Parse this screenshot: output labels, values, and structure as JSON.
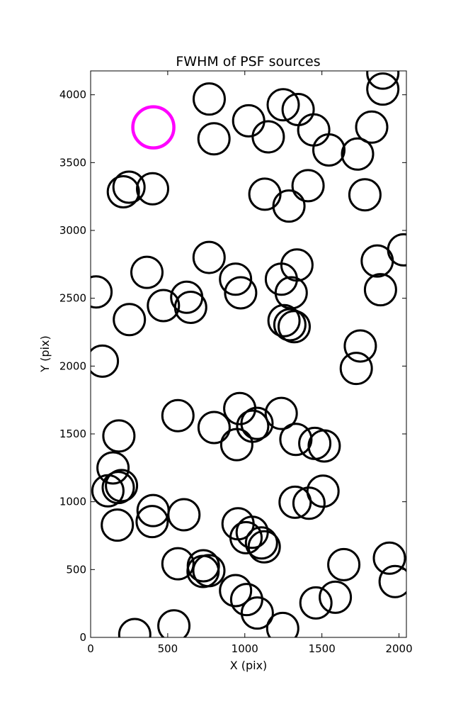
{
  "chart_data": {
    "type": "scatter",
    "title": "FWHM of PSF sources",
    "xlabel": "X (pix)",
    "ylabel": "Y (pix)",
    "xlim": [
      0,
      2048
    ],
    "ylim": [
      0,
      4176
    ],
    "xticks": [
      "0",
      "500",
      "1000",
      "1500",
      "2000"
    ],
    "yticks": [
      "0",
      "500",
      "1000",
      "1500",
      "2000",
      "2500",
      "3000",
      "3500",
      "4000"
    ],
    "grid": false,
    "marker": "open-circle",
    "marker_color": "#000000",
    "series": [
      {
        "color": "#000000",
        "points": [
          {
            "x": 769,
            "y": 3969
          },
          {
            "x": 1249,
            "y": 3926
          },
          {
            "x": 1346,
            "y": 3891
          },
          {
            "x": 1025,
            "y": 3808
          },
          {
            "x": 1447,
            "y": 3741
          },
          {
            "x": 1152,
            "y": 3690
          },
          {
            "x": 800,
            "y": 3676
          },
          {
            "x": 1823,
            "y": 3762
          },
          {
            "x": 1545,
            "y": 3593
          },
          {
            "x": 1731,
            "y": 3563
          },
          {
            "x": 1895,
            "y": 4042
          },
          {
            "x": 1895,
            "y": 4160
          },
          {
            "x": 249,
            "y": 3319
          },
          {
            "x": 212,
            "y": 3285
          },
          {
            "x": 402,
            "y": 3307
          },
          {
            "x": 1130,
            "y": 3267
          },
          {
            "x": 1410,
            "y": 3330
          },
          {
            "x": 1286,
            "y": 3180
          },
          {
            "x": 1779,
            "y": 3263
          },
          {
            "x": 768,
            "y": 2801
          },
          {
            "x": 2030,
            "y": 2857
          },
          {
            "x": 365,
            "y": 2691
          },
          {
            "x": 1338,
            "y": 2745
          },
          {
            "x": 940,
            "y": 2641
          },
          {
            "x": 1237,
            "y": 2641
          },
          {
            "x": 1859,
            "y": 2775
          },
          {
            "x": 35,
            "y": 2547
          },
          {
            "x": 623,
            "y": 2507
          },
          {
            "x": 973,
            "y": 2540
          },
          {
            "x": 1301,
            "y": 2540
          },
          {
            "x": 1880,
            "y": 2563
          },
          {
            "x": 472,
            "y": 2446
          },
          {
            "x": 649,
            "y": 2433
          },
          {
            "x": 251,
            "y": 2343
          },
          {
            "x": 1254,
            "y": 2335
          },
          {
            "x": 1292,
            "y": 2305
          },
          {
            "x": 1320,
            "y": 2291
          },
          {
            "x": 1749,
            "y": 2148
          },
          {
            "x": 1723,
            "y": 1983
          },
          {
            "x": 76,
            "y": 2036
          },
          {
            "x": 566,
            "y": 1635
          },
          {
            "x": 967,
            "y": 1687
          },
          {
            "x": 1236,
            "y": 1651
          },
          {
            "x": 801,
            "y": 1547
          },
          {
            "x": 1079,
            "y": 1578
          },
          {
            "x": 1051,
            "y": 1557
          },
          {
            "x": 183,
            "y": 1485
          },
          {
            "x": 1331,
            "y": 1460
          },
          {
            "x": 1454,
            "y": 1430
          },
          {
            "x": 1515,
            "y": 1411
          },
          {
            "x": 948,
            "y": 1421
          },
          {
            "x": 145,
            "y": 1249
          },
          {
            "x": 200,
            "y": 1119
          },
          {
            "x": 179,
            "y": 1105
          },
          {
            "x": 112,
            "y": 1081
          },
          {
            "x": 1507,
            "y": 1078
          },
          {
            "x": 1326,
            "y": 996
          },
          {
            "x": 1416,
            "y": 989
          },
          {
            "x": 405,
            "y": 935
          },
          {
            "x": 605,
            "y": 904
          },
          {
            "x": 399,
            "y": 854
          },
          {
            "x": 173,
            "y": 828
          },
          {
            "x": 956,
            "y": 838
          },
          {
            "x": 1048,
            "y": 775
          },
          {
            "x": 1008,
            "y": 735
          },
          {
            "x": 1108,
            "y": 696
          },
          {
            "x": 1126,
            "y": 668
          },
          {
            "x": 1975,
            "y": 412
          },
          {
            "x": 1938,
            "y": 584
          },
          {
            "x": 1642,
            "y": 536
          },
          {
            "x": 566,
            "y": 543
          },
          {
            "x": 731,
            "y": 528
          },
          {
            "x": 729,
            "y": 486
          },
          {
            "x": 767,
            "y": 492
          },
          {
            "x": 940,
            "y": 345
          },
          {
            "x": 1012,
            "y": 279
          },
          {
            "x": 1081,
            "y": 180
          },
          {
            "x": 1461,
            "y": 254
          },
          {
            "x": 1587,
            "y": 296
          },
          {
            "x": 1246,
            "y": 66
          },
          {
            "x": 540,
            "y": 85
          },
          {
            "x": 286,
            "y": 21
          }
        ]
      }
    ],
    "highlight": {
      "x": 407,
      "y": 3760,
      "color": "#ff00ff"
    }
  }
}
